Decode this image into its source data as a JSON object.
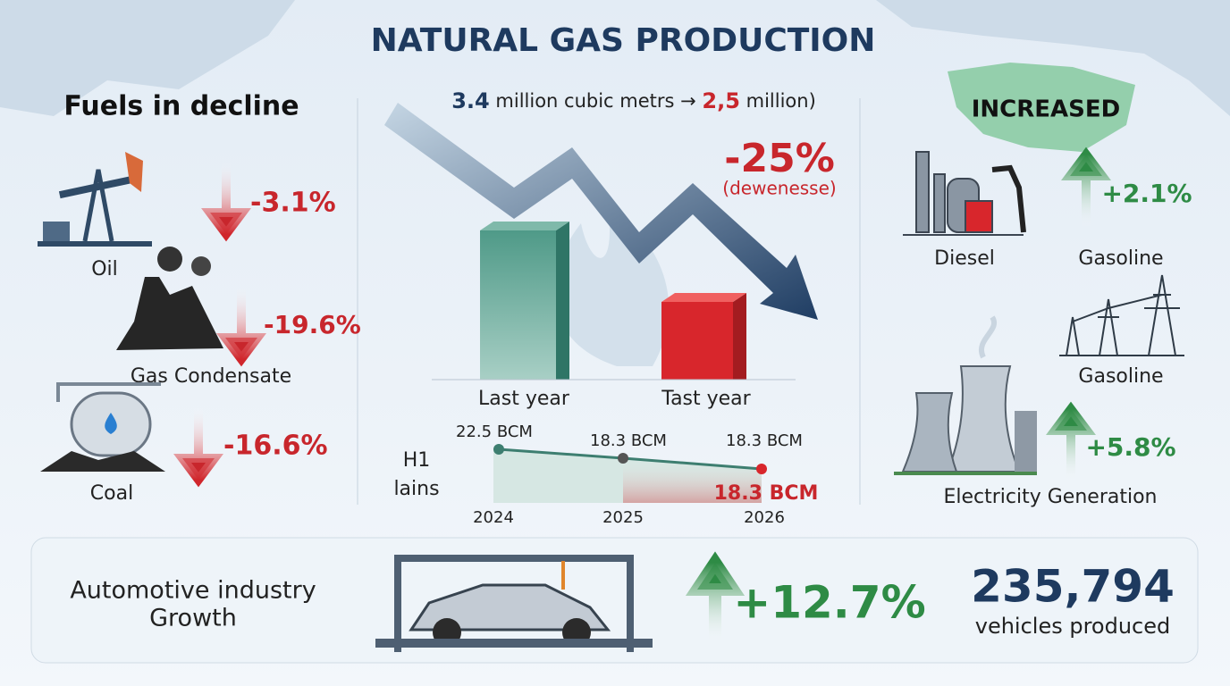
{
  "header": {
    "title": "NATURAL GAS PRODUCTION"
  },
  "decline": {
    "heading": "Fuels in decline",
    "items": [
      {
        "label": "Oil",
        "change": "-3.1%"
      },
      {
        "label": "Gas Condensate",
        "change": "-19.6%"
      },
      {
        "label": "Coal",
        "change": "-16.6%"
      }
    ]
  },
  "center": {
    "subtitle": {
      "from": "3.4",
      "mid": " million cubic metrs → ",
      "to": "2,5",
      "end": " million)"
    },
    "change": "-25%",
    "note": "(dewenesse)",
    "bars": [
      "Last year",
      "Tast year"
    ],
    "line": {
      "side": [
        "H1",
        "lains"
      ],
      "labels": [
        "22.5 BCM",
        "18.3 BCM",
        "18.3 BCM"
      ],
      "highlight": "18.3 BCM",
      "years": [
        "2024",
        "2025",
        "2026"
      ]
    }
  },
  "increase": {
    "heading": "INCREASED",
    "items": [
      {
        "label": "Diesel"
      },
      {
        "label": "Gasoline",
        "change": "+2.1%"
      },
      {
        "label": "Gasoline"
      },
      {
        "label": "Electricity Generation",
        "change": "+5.8%"
      }
    ]
  },
  "footer": {
    "title": [
      "Automotive industry",
      "Growth"
    ],
    "change": "+12.7%",
    "count": "235,794",
    "count_label": "vehicles produced"
  }
}
